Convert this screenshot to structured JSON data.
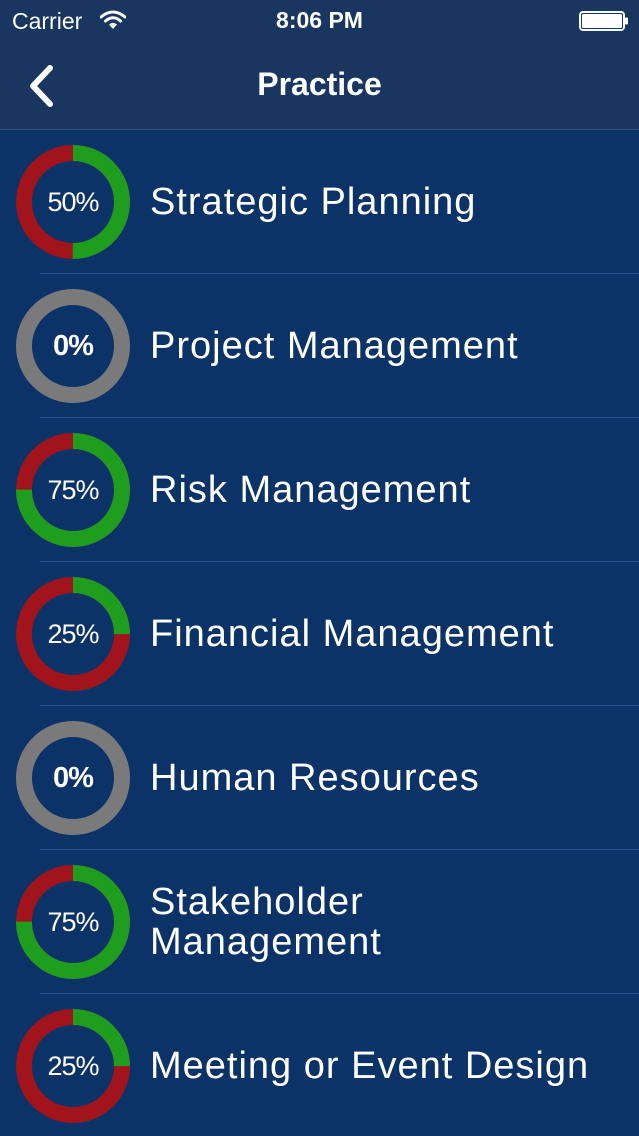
{
  "status_bar": {
    "carrier": "Carrier",
    "time": "8:06 PM"
  },
  "nav": {
    "title": "Practice",
    "back_icon": "chevron-left-icon"
  },
  "colors": {
    "complete": "#1f9d1f",
    "incomplete": "#a1141c",
    "empty": "#7a7a7a",
    "background": "#0b3367",
    "header": "#18365f"
  },
  "topics": [
    {
      "label": "Strategic Planning",
      "percent_text": "50%",
      "progress": 0.5
    },
    {
      "label": "Project Management",
      "percent_text": "0%",
      "progress": 0
    },
    {
      "label": "Risk Management",
      "percent_text": "75%",
      "progress": 0.75
    },
    {
      "label": "Financial Management",
      "percent_text": "25%",
      "progress": 0.25
    },
    {
      "label": "Human Resources",
      "percent_text": "0%",
      "progress": 0
    },
    {
      "label": "Stakeholder\nManagement",
      "percent_text": "75%",
      "progress": 0.75
    },
    {
      "label": "Meeting or Event Design",
      "percent_text": "25%",
      "progress": 0.25
    }
  ]
}
